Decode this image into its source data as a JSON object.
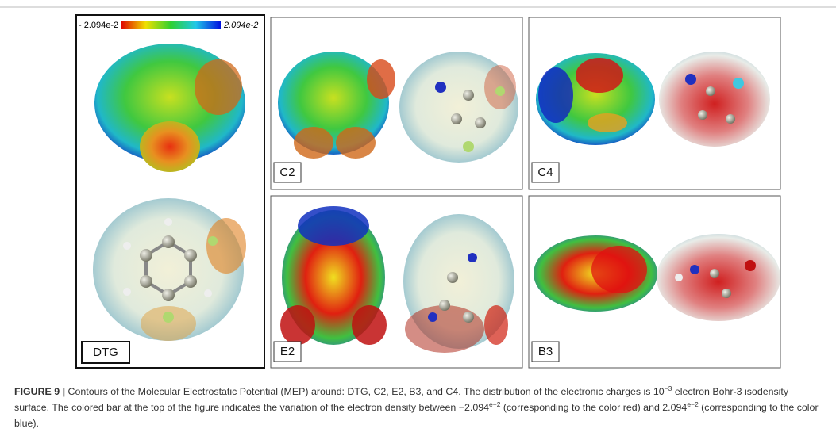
{
  "colorbar": {
    "min_label": "- 2.094e-2",
    "max_label": "2.094e-2"
  },
  "panels": [
    {
      "label": "DTG"
    },
    {
      "label": "C2"
    },
    {
      "label": "C4"
    },
    {
      "label": "E2"
    },
    {
      "label": "B3"
    }
  ],
  "caption": {
    "label": "FIGURE 9 |",
    "parts": [
      "Contours of the Molecular Electrostatic Potential (MEP) around: DTG, C2, E2, B3, and C4. The distribution of the electronic charges is 10",
      "−3",
      " electron Bohr-3 isodensity surface. The colored bar at the top of the figure indicates the variation of the electron density between −2.094",
      "e−2",
      " (corresponding to the color red) and 2.094",
      "e−2",
      " (corresponding to the color blue)."
    ]
  }
}
